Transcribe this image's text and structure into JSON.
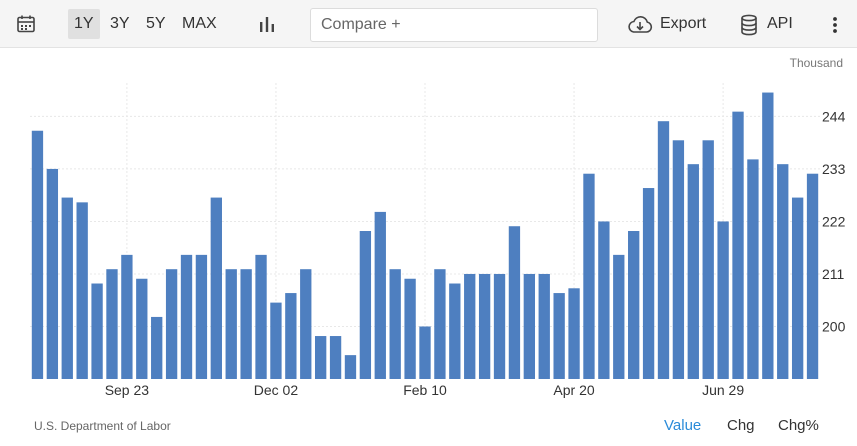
{
  "toolbar": {
    "calendar_icon": "calendar-icon",
    "ranges": [
      "1Y",
      "3Y",
      "5Y",
      "MAX"
    ],
    "active_range": "1Y",
    "chart_type_icon": "bar-chart-icon",
    "compare_placeholder": "Compare +",
    "export_label": "Export",
    "export_icon": "cloud-download-icon",
    "api_label": "API",
    "api_icon": "database-icon",
    "more_icon": "kebab-menu-icon"
  },
  "chart": {
    "unit_label": "Thousand"
  },
  "footer": {
    "source": "U.S. Department of Labor",
    "tabs": [
      "Value",
      "Chg",
      "Chg%"
    ],
    "active_tab": "Value"
  },
  "colors": {
    "bar": "#4e7fc0",
    "active_tab": "#2a8bd9",
    "grid": "#e8e8e8"
  },
  "chart_data": {
    "type": "bar",
    "x_tick_labels": [
      "Sep 23",
      "Dec 02",
      "Feb 10",
      "Apr 20",
      "Jun 29"
    ],
    "x_tick_bar_index": [
      6,
      16,
      26,
      36,
      46
    ],
    "y_ticks": [
      200,
      211,
      222,
      233,
      244
    ],
    "ylim": [
      189,
      251
    ],
    "unit": "Thousand",
    "grid": true,
    "values": [
      241,
      233,
      227,
      226,
      209,
      212,
      215,
      210,
      202,
      212,
      215,
      215,
      227,
      212,
      212,
      215,
      205,
      207,
      212,
      198,
      198,
      194,
      220,
      224,
      212,
      210,
      200,
      212,
      209,
      211,
      211,
      211,
      221,
      211,
      211,
      207,
      208,
      232,
      222,
      215,
      220,
      229,
      243,
      239,
      234,
      239,
      222,
      245,
      235,
      249,
      234,
      227,
      232
    ]
  }
}
